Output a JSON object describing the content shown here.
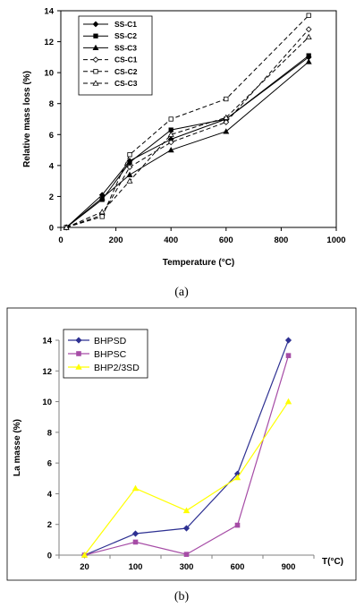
{
  "chart_data": [
    {
      "type": "line",
      "caption": "(a)",
      "xlabel": "Temperature (°C)",
      "ylabel": "Relative mass loss (%)",
      "xlim": [
        0,
        1000
      ],
      "ylim": [
        0,
        14
      ],
      "xticks": [
        "0",
        "200",
        "400",
        "600",
        "800",
        "1000"
      ],
      "yticks": [
        "0",
        "2",
        "4",
        "6",
        "8",
        "10",
        "12",
        "14"
      ],
      "grid": false,
      "legend": "top-left",
      "x": [
        20,
        150,
        250,
        400,
        600,
        900
      ],
      "series": [
        {
          "name": "SS-C1",
          "values": [
            0,
            2.1,
            4.3,
            5.7,
            7.0,
            11.0
          ],
          "marker": "diamond",
          "filled": true,
          "dash": false
        },
        {
          "name": "SS-C2",
          "values": [
            0,
            1.8,
            4.2,
            6.3,
            7.0,
            11.1
          ],
          "marker": "square",
          "filled": true,
          "dash": false
        },
        {
          "name": "SS-C3",
          "values": [
            0,
            1.9,
            3.4,
            5.0,
            6.2,
            10.7
          ],
          "marker": "triangle",
          "filled": true,
          "dash": false
        },
        {
          "name": "CS-C1",
          "values": [
            0,
            0.8,
            3.9,
            5.5,
            6.8,
            12.8
          ],
          "marker": "diamond",
          "filled": false,
          "dash": true
        },
        {
          "name": "CS-C2",
          "values": [
            0,
            0.7,
            4.7,
            7.0,
            8.3,
            13.7
          ],
          "marker": "square",
          "filled": false,
          "dash": true
        },
        {
          "name": "CS-C3",
          "values": [
            0,
            1.0,
            3.0,
            6.0,
            7.1,
            12.3
          ],
          "marker": "triangle",
          "filled": false,
          "dash": true
        }
      ]
    },
    {
      "type": "line",
      "caption": "(b)",
      "xlabel": "T(°C)",
      "ylabel": "La masse (%)",
      "ylim": [
        0,
        14
      ],
      "categories": [
        "20",
        "100",
        "300",
        "600",
        "900"
      ],
      "yticks": [
        "0",
        "2",
        "4",
        "6",
        "8",
        "10",
        "12",
        "14"
      ],
      "grid": false,
      "legend": "top-left",
      "series": [
        {
          "name": "BHPSD",
          "values": [
            0,
            1.4,
            1.75,
            5.3,
            14.0
          ],
          "color": "#2e3192",
          "marker": "diamond"
        },
        {
          "name": "BHPSC",
          "values": [
            0,
            0.85,
            0.05,
            1.95,
            13.0
          ],
          "color": "#a64ca6",
          "marker": "square"
        },
        {
          "name": "BHP2/3SD",
          "values": [
            0,
            4.35,
            2.9,
            5.05,
            10.0
          ],
          "color": "#ffff00",
          "marker": "triangle"
        }
      ]
    }
  ]
}
